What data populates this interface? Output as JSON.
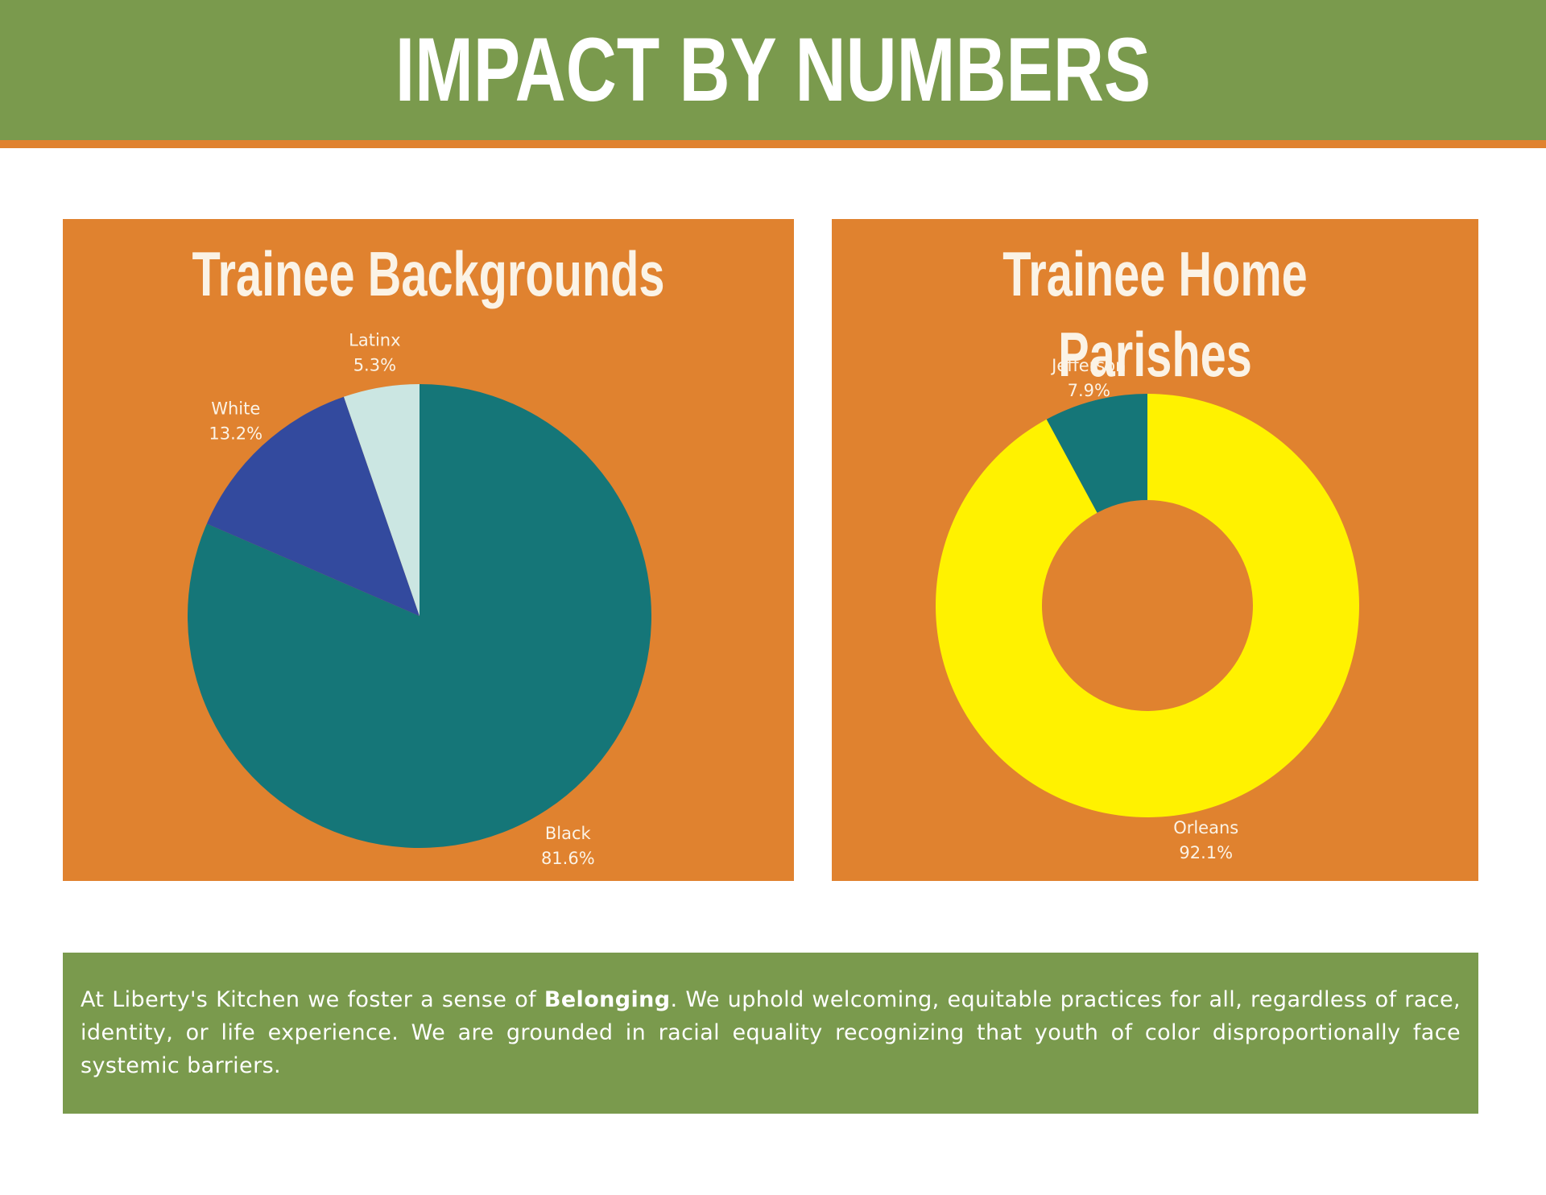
{
  "header": {
    "title": "IMPACT BY NUMBERS"
  },
  "colors": {
    "header_green": "#7a9a4d",
    "accent_orange": "#e0822f",
    "teal": "#157678",
    "blue": "#334a9e",
    "pale": "#cbe6e2",
    "yellow": "#fff200"
  },
  "chart_data": [
    {
      "type": "pie",
      "title": "Trainee Backgrounds",
      "categories": [
        "Black",
        "White",
        "Latinx"
      ],
      "values": [
        81.6,
        13.2,
        5.3
      ],
      "labels": [
        "81.6%",
        "13.2%",
        "5.3%"
      ],
      "colors": [
        "#157678",
        "#334a9e",
        "#cbe6e2"
      ]
    },
    {
      "type": "donut",
      "title": "Trainee Home Parishes",
      "categories": [
        "Orleans",
        "Jefferson"
      ],
      "values": [
        92.1,
        7.9
      ],
      "labels": [
        "92.1%",
        "7.9%"
      ],
      "colors": [
        "#fff200",
        "#157678"
      ]
    }
  ],
  "footer": {
    "text_before": "At Liberty's Kitchen we foster a sense of ",
    "text_bold": "Belonging",
    "text_after": ". We uphold welcoming, equitable practices for all, regardless of race, identity, or life experience. We are grounded in racial equality recognizing that youth of color disproportionally face systemic barriers."
  }
}
